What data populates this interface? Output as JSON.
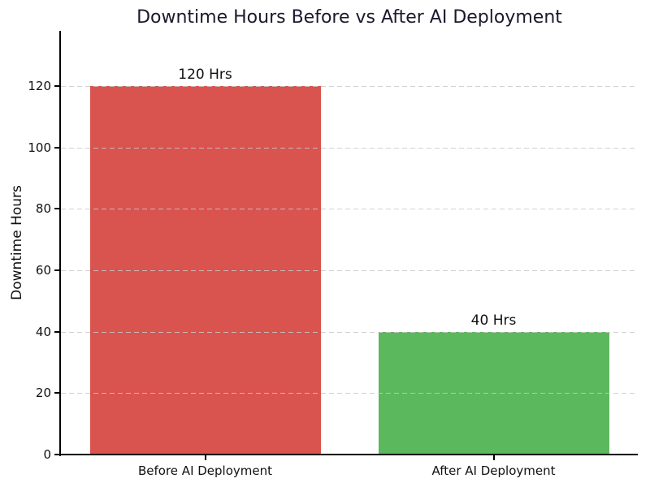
{
  "chart_data": {
    "type": "bar",
    "title": "Downtime Hours Before vs After AI Deployment",
    "title_color": "#1a1a2e",
    "categories": [
      "Before AI Deployment",
      "After AI Deployment"
    ],
    "values": [
      120,
      40
    ],
    "bar_labels": [
      "120 Hrs",
      "40 Hrs"
    ],
    "bar_colors": [
      "#d9534f",
      "#5cb85c"
    ],
    "xlabel": "",
    "ylabel": "Downtime Hours",
    "yticks": [
      0,
      20,
      40,
      60,
      80,
      100,
      120
    ],
    "ylim": [
      0,
      138
    ],
    "grid": {
      "axis": "y",
      "style": "dashed",
      "color": "#c9c9c9"
    },
    "legend": "none",
    "axis_color": "#000000",
    "tick_label_color": "#111111",
    "background": "#ffffff"
  }
}
